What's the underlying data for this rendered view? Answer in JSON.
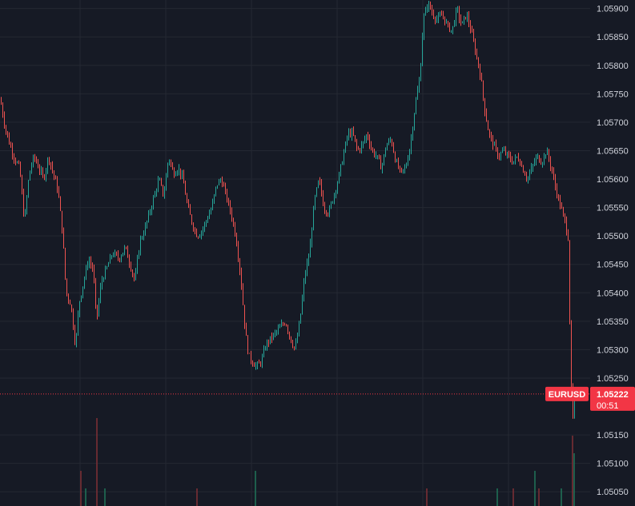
{
  "chart_data": {
    "type": "candlestick",
    "symbol": "EURUSD",
    "last_price": 1.05222,
    "last_price_label": "1.05222",
    "countdown": "00:51",
    "ylim": [
      1.05025,
      1.05915
    ],
    "y_ticks": [
      {
        "value": 1.059,
        "label": "1.05900"
      },
      {
        "value": 1.0585,
        "label": "1.05850"
      },
      {
        "value": 1.058,
        "label": "1.05800"
      },
      {
        "value": 1.0575,
        "label": "1.05750"
      },
      {
        "value": 1.057,
        "label": "1.05700"
      },
      {
        "value": 1.0565,
        "label": "1.05650"
      },
      {
        "value": 1.056,
        "label": "1.05600"
      },
      {
        "value": 1.0555,
        "label": "1.05550"
      },
      {
        "value": 1.055,
        "label": "1.05500"
      },
      {
        "value": 1.0545,
        "label": "1.05450"
      },
      {
        "value": 1.054,
        "label": "1.05400"
      },
      {
        "value": 1.0535,
        "label": "1.05350"
      },
      {
        "value": 1.053,
        "label": "1.05300"
      },
      {
        "value": 1.0525,
        "label": "1.05250"
      },
      {
        "value": 1.0515,
        "label": "1.05150"
      },
      {
        "value": 1.051,
        "label": "1.05100"
      },
      {
        "value": 1.0505,
        "label": "1.05050"
      }
    ],
    "grid": true,
    "colors": {
      "background": "#161a25",
      "grid": "#242832",
      "up": "#26a69a",
      "down": "#ef5350",
      "last_price": "#f23645",
      "axis_text": "#d1d4dc",
      "volume_up": "#1f6f56",
      "volume_down": "#7a2e35"
    },
    "price_path": [
      [
        0,
        1.0574
      ],
      [
        6,
        1.0569
      ],
      [
        12,
        1.0566
      ],
      [
        18,
        1.05635
      ],
      [
        24,
        1.0562
      ],
      [
        30,
        1.05525
      ],
      [
        36,
        1.0561
      ],
      [
        42,
        1.0564
      ],
      [
        48,
        1.0562
      ],
      [
        54,
        1.056
      ],
      [
        60,
        1.0564
      ],
      [
        66,
        1.0561
      ],
      [
        72,
        1.0558
      ],
      [
        78,
        1.055
      ],
      [
        82,
        1.054
      ],
      [
        88,
        1.0538
      ],
      [
        94,
        1.05305
      ],
      [
        98,
        1.0538
      ],
      [
        104,
        1.0542
      ],
      [
        110,
        1.0546
      ],
      [
        116,
        1.0544
      ],
      [
        120,
        1.0535
      ],
      [
        126,
        1.0542
      ],
      [
        132,
        1.0544
      ],
      [
        140,
        1.0547
      ],
      [
        148,
        1.0546
      ],
      [
        156,
        1.0548
      ],
      [
        162,
        1.0545
      ],
      [
        168,
        1.0542
      ],
      [
        174,
        1.0549
      ],
      [
        180,
        1.0551
      ],
      [
        186,
        1.0554
      ],
      [
        192,
        1.0557
      ],
      [
        198,
        1.056
      ],
      [
        204,
        1.0557
      ],
      [
        210,
        1.0564
      ],
      [
        216,
        1.0561
      ],
      [
        222,
        1.0562
      ],
      [
        228,
        1.056
      ],
      [
        234,
        1.0555
      ],
      [
        240,
        1.0552
      ],
      [
        246,
        1.055
      ],
      [
        252,
        1.0551
      ],
      [
        258,
        1.0553
      ],
      [
        264,
        1.0555
      ],
      [
        270,
        1.0559
      ],
      [
        276,
        1.056
      ],
      [
        282,
        1.0557
      ],
      [
        288,
        1.0554
      ],
      [
        294,
        1.055
      ],
      [
        300,
        1.0543
      ],
      [
        306,
        1.0533
      ],
      [
        310,
        1.0529
      ],
      [
        314,
        1.0528
      ],
      [
        320,
        1.0527
      ],
      [
        326,
        1.0528
      ],
      [
        332,
        1.0531
      ],
      [
        338,
        1.0532
      ],
      [
        344,
        1.0533
      ],
      [
        350,
        1.0534
      ],
      [
        356,
        1.0535
      ],
      [
        362,
        1.0532
      ],
      [
        368,
        1.053
      ],
      [
        374,
        1.0535
      ],
      [
        380,
        1.0543
      ],
      [
        386,
        1.0547
      ],
      [
        392,
        1.0556
      ],
      [
        398,
        1.056
      ],
      [
        404,
        1.0555
      ],
      [
        410,
        1.0554
      ],
      [
        416,
        1.0557
      ],
      [
        422,
        1.056
      ],
      [
        428,
        1.0564
      ],
      [
        434,
        1.0568
      ],
      [
        440,
        1.0568
      ],
      [
        446,
        1.0565
      ],
      [
        452,
        1.0566
      ],
      [
        458,
        1.0568
      ],
      [
        464,
        1.0565
      ],
      [
        470,
        1.0564
      ],
      [
        476,
        1.0562
      ],
      [
        482,
        1.0566
      ],
      [
        488,
        1.0567
      ],
      [
        494,
        1.0563
      ],
      [
        500,
        1.0561
      ],
      [
        506,
        1.0562
      ],
      [
        512,
        1.0566
      ],
      [
        518,
        1.0573
      ],
      [
        524,
        1.0578
      ],
      [
        528,
        1.0588
      ],
      [
        534,
        1.0591
      ],
      [
        540,
        1.0589
      ],
      [
        546,
        1.0588
      ],
      [
        552,
        1.0589
      ],
      [
        558,
        1.0587
      ],
      [
        564,
        1.0586
      ],
      [
        570,
        1.059
      ],
      [
        576,
        1.0587
      ],
      [
        582,
        1.0589
      ],
      [
        588,
        1.0586
      ],
      [
        594,
        1.0582
      ],
      [
        600,
        1.0578
      ],
      [
        604,
        1.0573
      ],
      [
        610,
        1.0568
      ],
      [
        616,
        1.0566
      ],
      [
        622,
        1.0564
      ],
      [
        628,
        1.0565
      ],
      [
        634,
        1.0564
      ],
      [
        640,
        1.0563
      ],
      [
        646,
        1.0564
      ],
      [
        652,
        1.0562
      ],
      [
        658,
        1.056
      ],
      [
        664,
        1.0562
      ],
      [
        670,
        1.0564
      ],
      [
        676,
        1.0563
      ],
      [
        682,
        1.0565
      ],
      [
        688,
        1.0562
      ],
      [
        694,
        1.0558
      ],
      [
        700,
        1.0555
      ],
      [
        706,
        1.0552
      ],
      [
        710,
        1.0549
      ],
      [
        711,
        1.0535
      ],
      [
        712,
        1.0528
      ],
      [
        713,
        1.0523
      ],
      [
        714,
        1.0516
      ],
      [
        715,
        1.0518
      ],
      [
        716,
        1.052
      ],
      [
        717,
        1.05222
      ]
    ],
    "volume_bars": [
      [
        100,
        2
      ],
      [
        106,
        1
      ],
      [
        120,
        5
      ],
      [
        130,
        1
      ],
      [
        245,
        1
      ],
      [
        318,
        2
      ],
      [
        532,
        1
      ],
      [
        620,
        1
      ],
      [
        640,
        1
      ],
      [
        667,
        2
      ],
      [
        672,
        1
      ],
      [
        700,
        1
      ],
      [
        714,
        4
      ],
      [
        716,
        3
      ]
    ]
  }
}
